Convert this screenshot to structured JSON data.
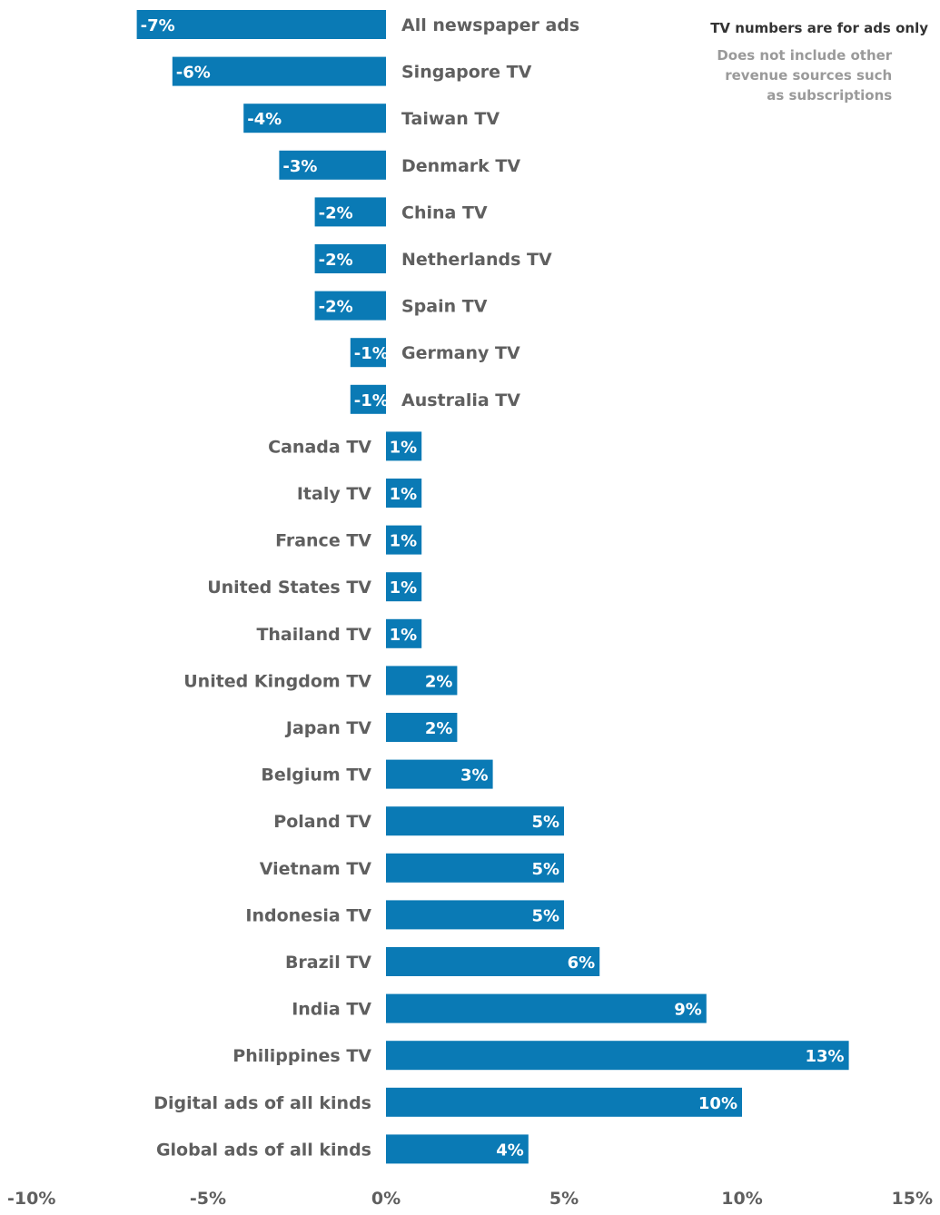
{
  "note": {
    "title": "TV numbers are for ads only",
    "subtitle": "Does not include other revenue sources such as subscriptions"
  },
  "colors": {
    "bar": "#0a7ab5",
    "label": "#5f5f5f",
    "value_label": "#ffffff"
  },
  "chart_data": {
    "type": "bar",
    "orientation": "horizontal",
    "categories": [
      "All newspaper ads",
      "Singapore TV",
      "Taiwan TV",
      "Denmark TV",
      "China TV",
      "Netherlands TV",
      "Spain TV",
      "Germany TV",
      "Australia TV",
      "Canada TV",
      "Italy TV",
      "France TV",
      "United States TV",
      "Thailand TV",
      "United Kingdom TV",
      "Japan TV",
      "Belgium TV",
      "Poland TV",
      "Vietnam TV",
      "Indonesia TV",
      "Brazil TV",
      "India TV",
      "Philippines TV",
      "Digital ads of all kinds",
      "Global ads of all kinds"
    ],
    "values": [
      -7,
      -6,
      -4,
      -3,
      -2,
      -2,
      -2,
      -1,
      -1,
      1,
      1,
      1,
      1,
      1,
      2,
      2,
      3,
      5,
      5,
      5,
      6,
      9,
      13,
      10,
      4
    ],
    "value_labels": [
      "-7%",
      "-6%",
      "-4%",
      "-3%",
      "-2%",
      "-2%",
      "-2%",
      "-1%",
      "-1%",
      "1%",
      "1%",
      "1%",
      "1%",
      "1%",
      "2%",
      "2%",
      "3%",
      "5%",
      "5%",
      "5%",
      "6%",
      "9%",
      "13%",
      "10%",
      "4%"
    ],
    "xlim": [
      -10,
      15
    ],
    "xticks": [
      -10,
      -5,
      0,
      5,
      10,
      15
    ],
    "xtick_labels": [
      "-10%",
      "-5%",
      "0%",
      "5%",
      "10%",
      "15%"
    ],
    "grid": false,
    "legend": "none"
  }
}
